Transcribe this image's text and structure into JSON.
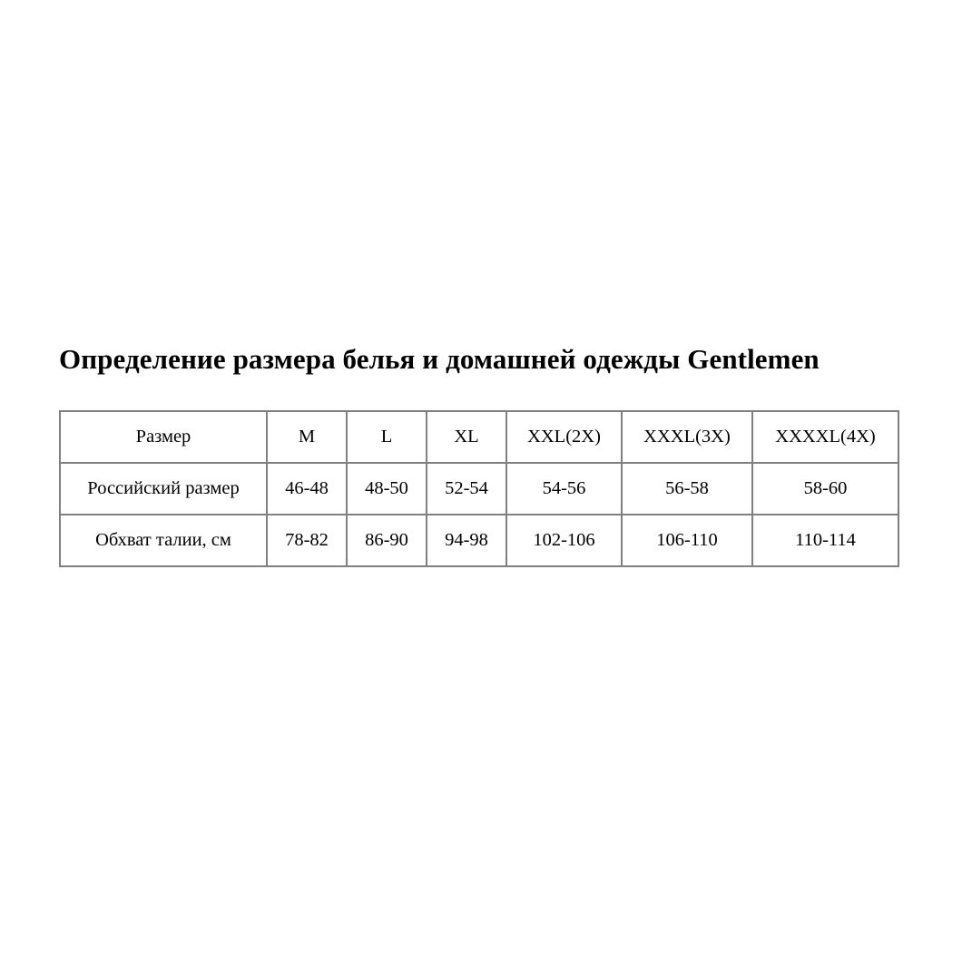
{
  "title": "Определение размера белья и домашней одежды Gentlemen",
  "table": {
    "rows": [
      [
        "Размер",
        "M",
        "L",
        "XL",
        "XXL(2X)",
        "XXXL(3X)",
        "XXXXL(4X)"
      ],
      [
        "Российский размер",
        "46-48",
        "48-50",
        "52-54",
        "54-56",
        "56-58",
        "58-60"
      ],
      [
        "Обхват талии, см",
        "78-82",
        "86-90",
        "94-98",
        "102-106",
        "106-110",
        "110-114"
      ]
    ]
  }
}
